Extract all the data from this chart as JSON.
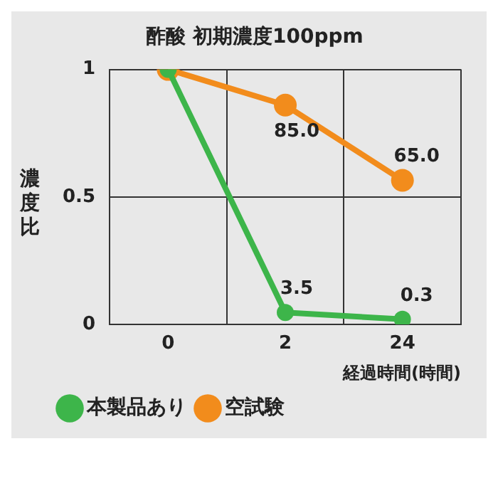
{
  "chart_data": {
    "type": "line",
    "title": "酢酸 初期濃度100ppm",
    "xlabel": "経過時間(時間)",
    "ylabel": "濃度比",
    "categories": [
      "0",
      "2",
      "24"
    ],
    "series": [
      {
        "name": "本製品あり",
        "color": "#3db54a",
        "values": [
          1,
          0.047,
          0.02
        ]
      },
      {
        "name": "空試験",
        "color": "#f28c1c",
        "values": [
          1,
          0.86,
          0.565
        ]
      }
    ],
    "annotations": [
      {
        "text": "3.5",
        "x": "2",
        "y": 0.047
      },
      {
        "text": "0.3",
        "x": "24",
        "y": 0.02
      },
      {
        "text": "85.0",
        "x": "2",
        "y": 0.86
      },
      {
        "text": "65.0",
        "x": "24",
        "y": 0.565
      }
    ],
    "ylim": [
      0,
      1
    ],
    "yticks": [
      0,
      0.5,
      1
    ],
    "grid": true,
    "legend": "bottom left",
    "marker": "circle",
    "line_style": "solid"
  }
}
